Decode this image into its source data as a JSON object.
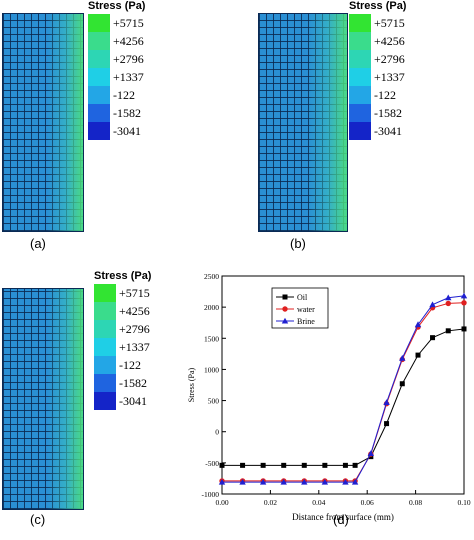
{
  "legend": {
    "title": "Stress (Pa)",
    "levels": [
      {
        "label": "+5715",
        "color": "#32e432"
      },
      {
        "label": "+4256",
        "color": "#3adc8c"
      },
      {
        "label": "+2796",
        "color": "#2dd6b4"
      },
      {
        "label": "+1337",
        "color": "#1fcfe6"
      },
      {
        "label": "-122",
        "color": "#23a6e6"
      },
      {
        "label": "-1582",
        "color": "#1f64e0"
      },
      {
        "label": "-3041",
        "color": "#1424c8"
      }
    ]
  },
  "panel_labels": [
    "(a)",
    "(b)",
    "(c)",
    "(d)"
  ],
  "chart_data": {
    "type": "line",
    "xlabel": "Distance from surface (mm)",
    "ylabel": "Stress (Pa)",
    "xlim": [
      0.0,
      0.1
    ],
    "ylim": [
      -1000,
      2500
    ],
    "xticks": [
      "0.00",
      "0.02",
      "0.04",
      "0.06",
      "0.08",
      "0.10"
    ],
    "yticks": [
      "-1000",
      "-500",
      "0",
      "500",
      "1000",
      "1500",
      "2000",
      "2500"
    ],
    "legend_position": "upper-left",
    "x": [
      0.0,
      0.0085,
      0.017,
      0.0255,
      0.034,
      0.0425,
      0.051,
      0.055,
      0.0615,
      0.068,
      0.0745,
      0.081,
      0.087,
      0.0935,
      0.1
    ],
    "series": [
      {
        "name": "Oil",
        "color": "#000000",
        "marker": "square",
        "values": [
          -540,
          -540,
          -540,
          -540,
          -540,
          -540,
          -540,
          -540,
          -400,
          130,
          770,
          1230,
          1510,
          1620,
          1650
        ]
      },
      {
        "name": "water",
        "color": "#e02020",
        "marker": "circle",
        "values": [
          -790,
          -790,
          -790,
          -790,
          -790,
          -790,
          -790,
          -790,
          -360,
          450,
          1160,
          1680,
          1990,
          2060,
          2070
        ]
      },
      {
        "name": "Brine",
        "color": "#2020d0",
        "marker": "triangle",
        "values": [
          -810,
          -810,
          -810,
          -810,
          -810,
          -810,
          -810,
          -810,
          -350,
          470,
          1180,
          1720,
          2040,
          2150,
          2180
        ]
      }
    ]
  }
}
